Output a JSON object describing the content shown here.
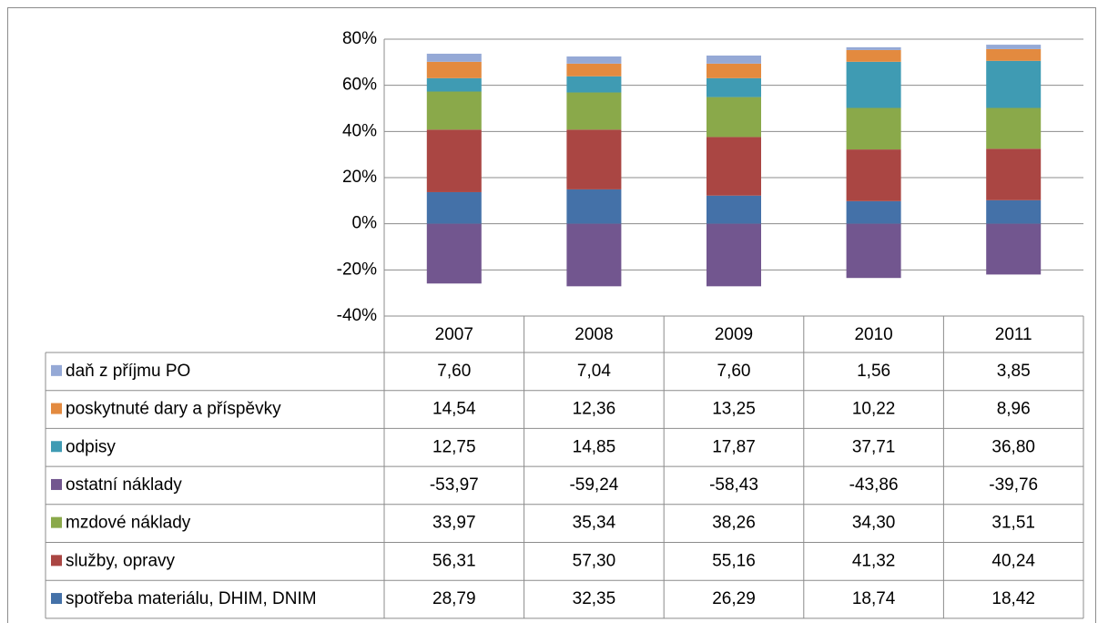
{
  "chart_data": {
    "type": "stacked_bar",
    "categories": [
      "2007",
      "2008",
      "2009",
      "2010",
      "2011"
    ],
    "ylim": [
      -40,
      80
    ],
    "yticks": [
      {
        "value": -40,
        "label": "-40%"
      },
      {
        "value": -20,
        "label": "-20%"
      },
      {
        "value": 0,
        "label": "0%"
      },
      {
        "value": 20,
        "label": "20%"
      },
      {
        "value": 40,
        "label": "40%"
      },
      {
        "value": 60,
        "label": "60%"
      },
      {
        "value": 80,
        "label": "80%"
      }
    ],
    "grid": true,
    "series": [
      {
        "name": "daň z příjmu PO",
        "color": "#95a9d6",
        "values": [
          3.5,
          3.1,
          3.5,
          1.2,
          1.9
        ]
      },
      {
        "name": "poskytnuté dary a příspěvky",
        "color": "#e38a3f",
        "values": [
          7.1,
          5.5,
          6.3,
          5.1,
          5.1
        ]
      },
      {
        "name": "odpisy",
        "color": "#3f9bb3",
        "values": [
          5.8,
          7.0,
          8.2,
          20.0,
          20.4
        ]
      },
      {
        "name": "ostatní náklady",
        "color": "#72568f",
        "values": [
          -25.9,
          -27.1,
          -27.1,
          -23.5,
          -22.0
        ]
      },
      {
        "name": "mzdové náklady",
        "color": "#8aa94a",
        "values": [
          16.5,
          16.1,
          17.3,
          18.0,
          17.7
        ]
      },
      {
        "name": "služby, opravy",
        "color": "#aa4643",
        "values": [
          27.1,
          25.9,
          25.4,
          22.4,
          22.3
        ]
      },
      {
        "name": "spotřeba materiálu, DHIM, DNIM",
        "color": "#4471a8",
        "values": [
          13.7,
          14.9,
          12.2,
          9.8,
          10.2
        ]
      }
    ],
    "table": [
      [
        "7,60",
        "7,04",
        "7,60",
        "1,56",
        "3,85"
      ],
      [
        "14,54",
        "12,36",
        "13,25",
        "10,22",
        "8,96"
      ],
      [
        "12,75",
        "14,85",
        "17,87",
        "37,71",
        "36,80"
      ],
      [
        "-53,97",
        "-59,24",
        "-58,43",
        "-43,86",
        "-39,76"
      ],
      [
        "33,97",
        "35,34",
        "38,26",
        "34,30",
        "31,51"
      ],
      [
        "56,31",
        "57,30",
        "55,16",
        "41,32",
        "40,24"
      ],
      [
        "28,79",
        "32,35",
        "26,29",
        "18,74",
        "18,42"
      ]
    ]
  }
}
